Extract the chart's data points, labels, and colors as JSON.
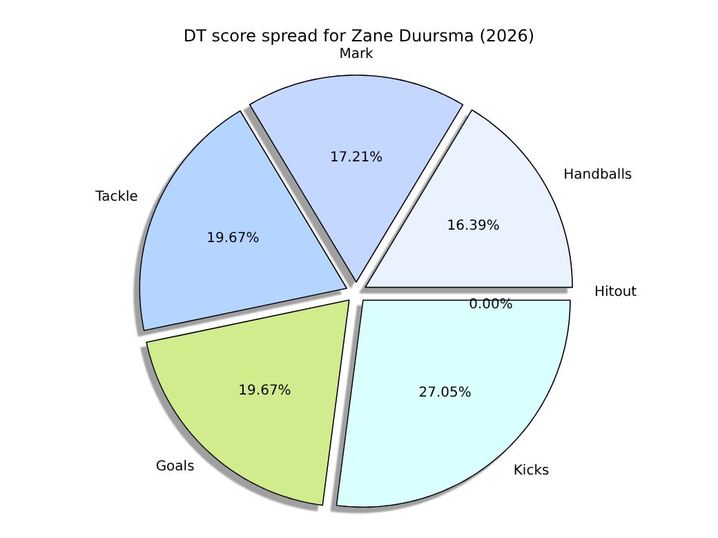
{
  "chart_data": {
    "type": "pie",
    "title": "DT score spread for Zane Duursma (2026)",
    "categories": [
      "Handballs",
      "Mark",
      "Tackle",
      "Goals",
      "Kicks",
      "Hitout"
    ],
    "values": [
      16.39,
      17.21,
      19.67,
      19.67,
      27.05,
      0
    ],
    "colors": [
      "#eaf1ff",
      "#c4d8ff",
      "#b3d5ff",
      "#d0ec8c",
      "#d9ffff",
      "#e8e8e8"
    ],
    "value_labels": [
      "16.39%",
      "17.21%",
      "19.67%",
      "19.67%",
      "27.05%",
      "0.00%"
    ]
  }
}
